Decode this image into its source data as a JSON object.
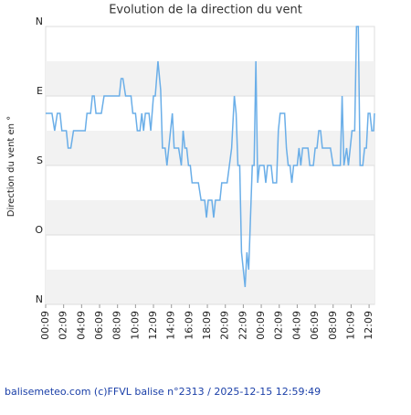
{
  "chart_data": {
    "type": "line",
    "title": "Evolution de la direction du vent",
    "y_label": "Direction du vent en °",
    "footer": "balisemeteo.com (c)FFVL balise n°2313 / 2025-12-15 12:59:49",
    "y_inverted": true,
    "ylim": [
      0,
      360
    ],
    "yticks": [
      {
        "value": 0,
        "label": "N"
      },
      {
        "value": 90,
        "label": "E"
      },
      {
        "value": 180,
        "label": "S"
      },
      {
        "value": 270,
        "label": "O"
      },
      {
        "value": 360,
        "label": "N"
      }
    ],
    "xlim": [
      0,
      36.6
    ],
    "xticks": [
      {
        "value": 0,
        "label": "00:09"
      },
      {
        "value": 2,
        "label": "02:09"
      },
      {
        "value": 4,
        "label": "04:09"
      },
      {
        "value": 6,
        "label": "06:09"
      },
      {
        "value": 8,
        "label": "08:09"
      },
      {
        "value": 10,
        "label": "10:09"
      },
      {
        "value": 12,
        "label": "12:09"
      },
      {
        "value": 14,
        "label": "14:09"
      },
      {
        "value": 16,
        "label": "16:09"
      },
      {
        "value": 18,
        "label": "18:09"
      },
      {
        "value": 20,
        "label": "20:09"
      },
      {
        "value": 22,
        "label": "22:09"
      },
      {
        "value": 24,
        "label": "00:09"
      },
      {
        "value": 26,
        "label": "02:09"
      },
      {
        "value": 28,
        "label": "04:09"
      },
      {
        "value": 30,
        "label": "06:09"
      },
      {
        "value": 32,
        "label": "08:09"
      },
      {
        "value": 34,
        "label": "10:09"
      },
      {
        "value": 36,
        "label": "12:09"
      }
    ],
    "grid": true,
    "band_color": "#f2f2f2",
    "series": [
      {
        "color": "#6aaee8",
        "x": [
          0,
          0.7,
          1.0,
          1.3,
          1.6,
          1.8,
          2.3,
          2.5,
          2.8,
          3.1,
          4.4,
          4.6,
          5.0,
          5.2,
          5.4,
          5.6,
          6.2,
          6.5,
          8.2,
          8.4,
          8.6,
          8.9,
          9.5,
          9.7,
          10.0,
          10.2,
          10.5,
          10.7,
          10.9,
          11.1,
          11.5,
          11.7,
          12.0,
          12.2,
          12.5,
          12.8,
          13.0,
          13.3,
          13.5,
          13.7,
          13.9,
          14.1,
          14.3,
          14.8,
          15.1,
          15.3,
          15.5,
          15.7,
          15.9,
          16.1,
          16.3,
          17.0,
          17.3,
          17.7,
          17.9,
          18.1,
          18.5,
          18.7,
          18.9,
          19.4,
          19.6,
          20.2,
          20.7,
          21.0,
          21.2,
          21.4,
          21.6,
          21.8,
          22.2,
          22.4,
          22.6,
          22.8,
          23.0,
          23.2,
          23.4,
          23.6,
          23.8,
          24.3,
          24.5,
          24.7,
          25.1,
          25.3,
          25.7,
          25.9,
          26.1,
          26.6,
          26.8,
          27.0,
          27.2,
          27.4,
          27.6,
          28.0,
          28.2,
          28.4,
          28.6,
          29.2,
          29.4,
          29.8,
          30.0,
          30.2,
          30.4,
          30.6,
          30.8,
          31.7,
          32.0,
          32.8,
          33.0,
          33.2,
          33.5,
          33.7,
          33.9,
          34.1,
          34.4,
          34.6,
          34.8,
          35.0,
          35.3,
          35.5,
          35.7,
          35.9,
          36.1,
          36.3,
          36.5,
          36.6
        ],
        "values": [
          112.5,
          112.5,
          135,
          112.5,
          112.5,
          135,
          135,
          157.5,
          157.5,
          135,
          135,
          112.5,
          112.5,
          90,
          90,
          112.5,
          112.5,
          90,
          90,
          67.5,
          67.5,
          90,
          90,
          112.5,
          112.5,
          135,
          135,
          112.5,
          135,
          112.5,
          112.5,
          135,
          90,
          90,
          45,
          82,
          157.5,
          157.5,
          180,
          157.5,
          135,
          112.5,
          157.5,
          157.5,
          180,
          135,
          157.5,
          157.5,
          180,
          180,
          202.5,
          202.5,
          225,
          225,
          247.5,
          225,
          225,
          247.5,
          225,
          225,
          202.5,
          202.5,
          157.5,
          90,
          112.5,
          180,
          180,
          292.5,
          337.5,
          292.5,
          315,
          247.5,
          180,
          180,
          45,
          202.5,
          180,
          180,
          202.5,
          180,
          180,
          202.5,
          202.5,
          135,
          112.5,
          112.5,
          157.5,
          180,
          180,
          202.5,
          180,
          180,
          157.5,
          180,
          157.5,
          157.5,
          180,
          180,
          157.5,
          157.5,
          135,
          135,
          157.5,
          157.5,
          180,
          180,
          90,
          180,
          157.5,
          180,
          157.5,
          135,
          135,
          0,
          0,
          180,
          180,
          157.5,
          157.5,
          112.5,
          112.5,
          135,
          135,
          112.5
        ]
      }
    ]
  }
}
